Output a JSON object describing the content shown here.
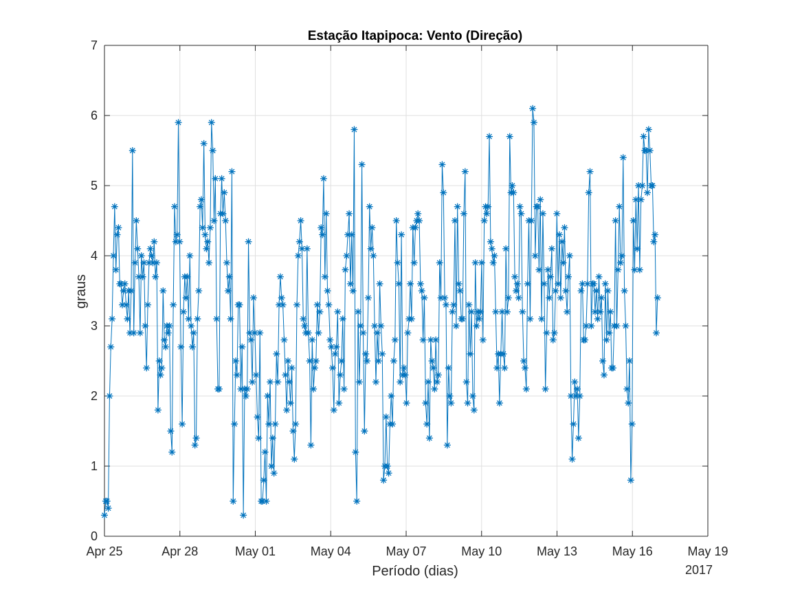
{
  "chart_data": {
    "type": "line",
    "title": "Estação Itapipoca: Vento (Direção)",
    "xlabel": "Período (dias)",
    "ylabel": "graus",
    "x_axis_year_label": "2017",
    "x_ticks": [
      "Apr 25",
      "Apr 28",
      "May 01",
      "May 04",
      "May 07",
      "May 10",
      "May 13",
      "May 16",
      "May 19"
    ],
    "x_tick_dates": [
      "2017-04-25",
      "2017-04-28",
      "2017-05-01",
      "2017-05-04",
      "2017-05-07",
      "2017-05-10",
      "2017-05-13",
      "2017-05-16",
      "2017-05-19"
    ],
    "y_ticks": [
      "0",
      "1",
      "2",
      "3",
      "4",
      "5",
      "6",
      "7"
    ],
    "ylim": [
      0,
      7
    ],
    "xlim": [
      "2017-04-25",
      "2017-05-19"
    ],
    "grid": true,
    "marker": "asterisk",
    "color": "#0072BD",
    "series": [
      {
        "start": "2017-04-25",
        "end": "2017-05-17",
        "values": [
          0.3,
          0.5,
          0.5,
          0.4,
          2.0,
          2.7,
          3.1,
          4.0,
          4.7,
          3.8,
          4.3,
          4.4,
          3.6,
          3.6,
          3.3,
          3.5,
          3.6,
          3.3,
          3.1,
          3.5,
          2.9,
          3.5,
          5.5,
          2.9,
          3.9,
          4.5,
          4.1,
          3.7,
          2.9,
          4.0,
          3.7,
          3.9,
          3.0,
          2.4,
          3.3,
          3.9,
          4.1,
          4.0,
          3.9,
          4.2,
          3.7,
          3.9,
          1.8,
          2.5,
          2.3,
          2.4,
          3.5,
          2.8,
          2.7,
          3.0,
          2.9,
          3.0,
          1.5,
          1.2,
          3.3,
          4.7,
          4.2,
          4.3,
          5.9,
          4.2,
          2.7,
          1.6,
          3.2,
          3.7,
          3.4,
          3.7,
          3.1,
          4.0,
          3.0,
          2.7,
          2.9,
          1.3,
          1.4,
          3.1,
          3.5,
          4.7,
          4.8,
          4.4,
          5.6,
          4.3,
          4.1,
          4.2,
          3.9,
          4.4,
          5.9,
          5.5,
          4.5,
          5.1,
          3.1,
          2.1,
          2.1,
          4.6,
          5.1,
          4.6,
          4.9,
          4.5,
          3.9,
          3.5,
          3.7,
          3.1,
          5.2,
          0.5,
          1.6,
          2.5,
          2.3,
          3.3,
          3.3,
          2.1,
          2.7,
          0.3,
          2.1,
          2.0,
          2.1,
          4.2,
          2.9,
          2.8,
          2.2,
          3.4,
          2.9,
          2.3,
          1.7,
          1.4,
          2.9,
          0.5,
          0.5,
          0.8,
          1.2,
          0.5,
          2.0,
          1.6,
          2.2,
          1.0,
          1.4,
          0.9,
          1.6,
          2.6,
          2.2,
          3.3,
          3.7,
          3.4,
          3.3,
          2.8,
          2.3,
          1.8,
          2.5,
          2.2,
          1.9,
          2.4,
          1.5,
          1.1,
          1.6,
          3.3,
          4.0,
          4.2,
          4.5,
          4.1,
          3.1,
          3.0,
          2.9,
          4.1,
          2.9,
          2.5,
          1.3,
          2.8,
          2.1,
          2.4,
          2.5,
          3.3,
          2.9,
          3.2,
          4.4,
          4.3,
          5.1,
          3.7,
          4.6,
          3.5,
          3.3,
          2.8,
          2.7,
          2.4,
          1.8,
          2.6,
          2.7,
          3.2,
          1.9,
          2.3,
          2.5,
          3.1,
          2.1,
          3.8,
          4.0,
          4.3,
          4.6,
          3.6,
          4.3,
          3.5,
          5.8,
          1.2,
          0.5,
          3.2,
          2.2,
          3.0,
          5.3,
          2.9,
          1.5,
          2.6,
          2.5,
          3.4,
          4.7,
          4.1,
          4.4,
          4.0,
          3.0,
          2.2,
          2.9,
          2.5,
          3.6,
          3.0,
          2.6,
          0.8,
          1.0,
          1.7,
          1.0,
          0.9,
          1.6,
          2.0,
          1.6,
          2.5,
          2.8,
          4.5,
          3.9,
          3.6,
          2.2,
          4.3,
          2.3,
          2.4,
          2.3,
          1.9,
          2.9,
          3.1,
          3.6,
          3.1,
          4.4,
          3.9,
          4.4,
          4.5,
          4.6,
          4.5,
          3.6,
          3.5,
          2.8,
          3.4,
          1.9,
          1.6,
          2.2,
          1.4,
          2.8,
          2.5,
          2.4,
          2.1,
          2.8,
          2.2,
          2.3,
          3.9,
          3.4,
          5.3,
          4.9,
          3.4,
          3.3,
          1.3,
          2.4,
          2.0,
          1.9,
          3.2,
          3.3,
          4.5,
          3.0,
          4.7,
          3.6,
          3.5,
          3.1,
          3.1,
          4.6,
          5.2,
          2.2,
          1.9,
          3.3,
          2.6,
          3.2,
          2.0,
          1.8,
          3.9,
          3.0,
          3.2,
          3.1,
          3.2,
          3.9,
          2.8,
          4.5,
          4.7,
          4.6,
          4.7,
          5.7,
          4.2,
          4.1,
          3.9,
          4.0,
          3.2,
          2.4,
          2.6,
          1.9,
          2.6,
          3.2,
          2.6,
          2.4,
          4.1,
          3.2,
          3.4,
          5.7,
          4.9,
          5.0,
          4.9,
          3.7,
          3.5,
          3.6,
          3.4,
          4.7,
          4.6,
          3.2,
          2.5,
          2.4,
          2.1,
          3.6,
          4.5,
          3.1,
          4.5,
          6.1,
          5.9,
          4.0,
          4.7,
          4.7,
          3.8,
          4.8,
          3.1,
          4.6,
          3.6,
          2.1,
          2.9,
          3.8,
          3.4,
          3.7,
          4.1,
          2.8,
          2.9,
          3.5,
          4.6,
          3.6,
          4.3,
          3.4,
          4.2,
          3.9,
          4.4,
          3.5,
          3.2,
          3.7,
          4.0,
          2.0,
          1.1,
          1.6,
          2.2,
          2.0,
          2.1,
          1.4,
          2.0,
          3.5,
          3.6,
          2.8,
          2.8,
          3.0,
          3.6,
          4.9,
          5.2,
          3.0,
          3.6,
          3.6,
          3.2,
          3.5,
          3.1,
          3.7,
          3.2,
          3.4,
          2.5,
          2.3,
          3.6,
          2.8,
          3.5,
          2.9,
          3.2,
          2.4,
          2.4,
          3.0,
          4.5,
          3.0,
          3.8,
          4.7,
          3.9,
          4.0,
          5.4,
          3.5,
          3.0,
          2.1,
          1.9,
          2.5,
          0.8,
          1.6,
          4.5,
          3.8,
          4.8,
          4.1,
          5.0,
          3.8,
          4.8,
          5.0,
          5.7,
          5.5,
          5.5,
          4.9,
          5.8,
          5.5,
          5.0,
          5.0,
          4.2,
          4.3,
          2.9,
          3.4
        ]
      }
    ]
  }
}
